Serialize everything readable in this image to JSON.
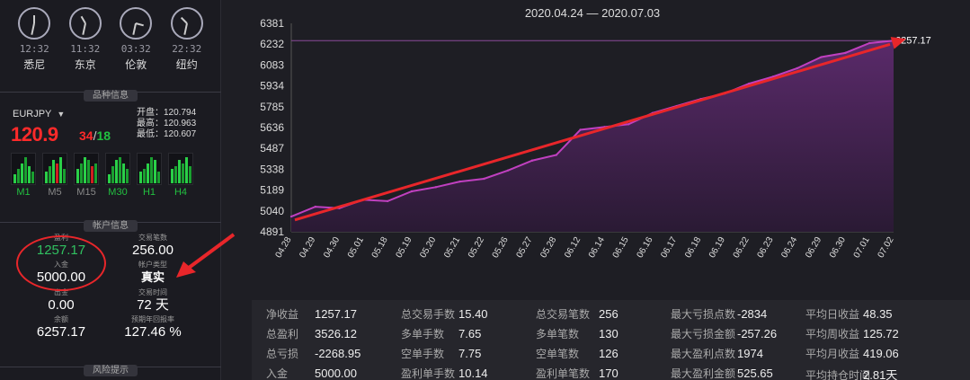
{
  "clocks": [
    {
      "time": "12:32",
      "city": "悉尼",
      "h": 0.0,
      "m": 192
    },
    {
      "time": "11:32",
      "city": "东京",
      "h": -30,
      "m": 192
    },
    {
      "time": "03:32",
      "city": "伦敦",
      "h": 105,
      "m": 192
    },
    {
      "time": "22:32",
      "city": "纽约",
      "h": -45,
      "m": 192
    }
  ],
  "sections": {
    "instrument": "品种信息",
    "account": "帐户信息",
    "risk": "风险提示"
  },
  "instrument": {
    "symbol": "EURJPY",
    "price_main": "120.9",
    "price_bid_tail": "34",
    "slash": "/",
    "price_ask_tail": "18",
    "open_label": "开盘",
    "open": "120.794",
    "high_label": "最高",
    "high": "120.963",
    "low_label": "最低",
    "low": "120.607",
    "timeframes": [
      "M1",
      "M5",
      "M15",
      "M30",
      "H1",
      "H4"
    ]
  },
  "account": {
    "profit_label": "盈利",
    "profit": "1257.17",
    "trades_label": "交易笔数",
    "trades": "256.00",
    "deposit_label": "入金",
    "deposit": "5000.00",
    "type_label": "帐户类型",
    "type": "真实",
    "withdraw_label": "出金",
    "withdraw": "0.00",
    "time_label": "交易时间",
    "time": "72 天",
    "balance_label": "余额",
    "balance": "6257.17",
    "annual_label": "预期年回报率",
    "annual": "127.46 %"
  },
  "chart_data": {
    "type": "area",
    "title": "2020.04.24 — 2020.07.03",
    "x": [
      "04.28",
      "04.29",
      "04.30",
      "05.01",
      "05.18",
      "05.19",
      "05.20",
      "05.21",
      "05.22",
      "05.26",
      "05.27",
      "05.28",
      "06.12",
      "06.14",
      "06.15",
      "06.16",
      "06.17",
      "06.18",
      "06.19",
      "06.22",
      "06.23",
      "06.24",
      "06.29",
      "06.30",
      "07.01",
      "07.02"
    ],
    "series": [
      {
        "values": [
          5000,
          5070,
          5060,
          5120,
          5110,
          5180,
          5210,
          5250,
          5270,
          5330,
          5400,
          5440,
          5620,
          5640,
          5660,
          5740,
          5790,
          5840,
          5880,
          5950,
          6000,
          6060,
          6140,
          6170,
          6240,
          6257.17
        ]
      }
    ],
    "ylim": [
      4891,
      6381
    ],
    "yticks": [
      "6381",
      "6232",
      "6083",
      "5934",
      "5785",
      "5636",
      "5487",
      "5338",
      "5189",
      "5040",
      "4891"
    ],
    "last_value_label": "6257.17",
    "grid": false,
    "colors": {
      "line": "#c040c0",
      "fill_top": "#5a2a6a",
      "fill_bottom": "#2a1a34",
      "arrow": "#e8262a"
    }
  },
  "stats": [
    [
      {
        "k": "净收益",
        "v": "1257.17"
      },
      {
        "k": "总盈利",
        "v": "3526.12"
      },
      {
        "k": "总亏损",
        "v": "-2268.95"
      },
      {
        "k": "入金",
        "v": "5000.00"
      }
    ],
    [
      {
        "k": "总交易手数",
        "v": "15.40"
      },
      {
        "k": "多单手数",
        "v": "7.65"
      },
      {
        "k": "空单手数",
        "v": "7.75"
      },
      {
        "k": "盈利单手数",
        "v": "10.14"
      }
    ],
    [
      {
        "k": "总交易笔数",
        "v": "256"
      },
      {
        "k": "多单笔数",
        "v": "130"
      },
      {
        "k": "空单笔数",
        "v": "126"
      },
      {
        "k": "盈利单笔数",
        "v": "170"
      }
    ],
    [
      {
        "k": "最大亏损点数",
        "v": "-2834"
      },
      {
        "k": "最大亏损金额",
        "v": "-257.26"
      },
      {
        "k": "最大盈利点数",
        "v": "1974"
      },
      {
        "k": "最大盈利金额",
        "v": "525.65"
      }
    ],
    [
      {
        "k": "平均日收益",
        "v": "48.35"
      },
      {
        "k": "平均周收益",
        "v": "125.72"
      },
      {
        "k": "平均月收益",
        "v": "419.06"
      },
      {
        "k": "平均持仓时间",
        "v": "2.81天"
      }
    ]
  ]
}
